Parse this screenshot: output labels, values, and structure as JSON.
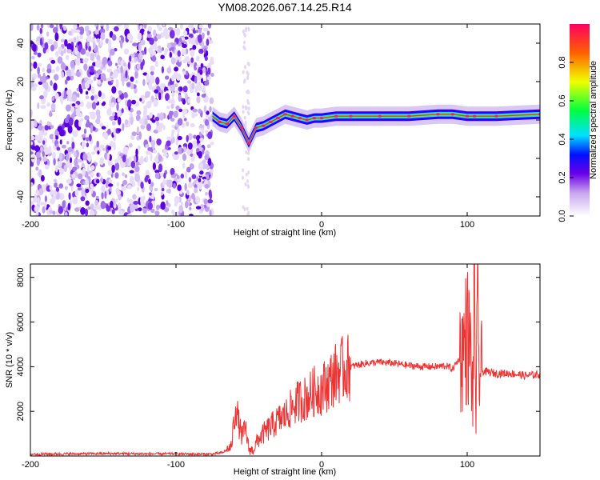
{
  "chart_data": [
    {
      "type": "heatmap",
      "title": "YM08.2026.067.14.25.R14",
      "xlabel": "Height of straight line (km)",
      "ylabel": "Frequency (Hz)",
      "xlim": [
        -200,
        150
      ],
      "ylim": [
        -50,
        50
      ],
      "x_ticks": [
        -200,
        -100,
        0,
        100
      ],
      "y_ticks": [
        -40,
        -20,
        0,
        20,
        40
      ],
      "colorbar": {
        "label": "Normalized spectral amplitude",
        "range": [
          0,
          1
        ],
        "ticks": [
          0.0,
          0.2,
          0.4,
          0.6,
          0.8
        ]
      },
      "noise_region_x": [
        -200,
        -75
      ],
      "ridge": {
        "x": [
          -75,
          -70,
          -65,
          -60,
          -55,
          -50,
          -45,
          -40,
          -35,
          -30,
          -25,
          -20,
          -15,
          -10,
          -5,
          0,
          10,
          20,
          40,
          60,
          80,
          90,
          100,
          105,
          120,
          150
        ],
        "freq_hz": [
          2,
          -1,
          -2,
          2,
          -4,
          -12,
          -4,
          -3,
          -1,
          1,
          3,
          2,
          1,
          0,
          1,
          1,
          2,
          2,
          2,
          2,
          3,
          3,
          2,
          2,
          2,
          3
        ]
      }
    },
    {
      "type": "line",
      "xlabel": "Height of straight line (km)",
      "ylabel": "SNR (10 * v/v)",
      "xlim": [
        -200,
        150
      ],
      "ylim": [
        0,
        8600
      ],
      "x_ticks": [
        -200,
        -100,
        0,
        100
      ],
      "y_ticks": [
        2000,
        4000,
        6000,
        8000
      ],
      "series": [
        {
          "name": "SNR",
          "color": "#ee3333",
          "x": [
            -200,
            -180,
            -160,
            -140,
            -120,
            -100,
            -85,
            -75,
            -68,
            -62,
            -59,
            -57,
            -55,
            -52,
            -50,
            -47,
            -44,
            -40,
            -35,
            -30,
            -25,
            -20,
            -15,
            -10,
            -5,
            0,
            5,
            10,
            15,
            20,
            30,
            40,
            50,
            60,
            70,
            80,
            85,
            90,
            93,
            96,
            98,
            100,
            102,
            104,
            105,
            106,
            107,
            108,
            110,
            120,
            130,
            140,
            150
          ],
          "values": [
            80,
            90,
            100,
            110,
            90,
            100,
            80,
            80,
            150,
            400,
            2300,
            1500,
            900,
            1200,
            300,
            250,
            700,
            1000,
            1300,
            1600,
            1800,
            2200,
            2500,
            2600,
            2900,
            3000,
            3300,
            3700,
            3900,
            4000,
            4150,
            4200,
            4150,
            4050,
            4000,
            4000,
            4050,
            3900,
            4200,
            4500,
            5000,
            5500,
            4800,
            2500,
            8300,
            1500,
            6300,
            3800,
            3800,
            3700,
            3700,
            3600,
            3650
          ]
        }
      ]
    }
  ]
}
